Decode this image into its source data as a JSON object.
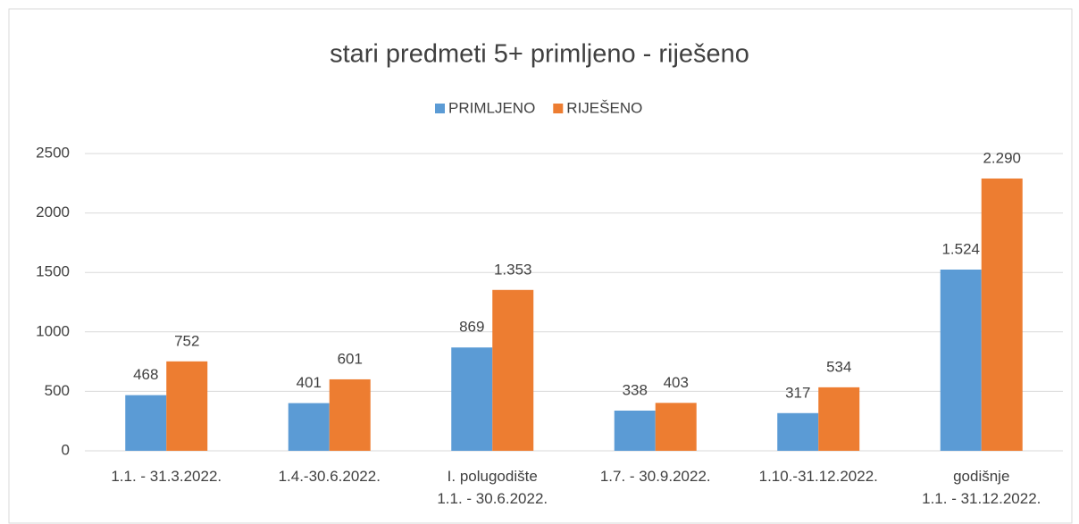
{
  "chart_data": {
    "type": "bar",
    "title": "stari predmeti 5+ primljeno - riješeno",
    "categories": [
      "1.1. - 31.3.2022.",
      "1.4.-30.6.2022.",
      "I. polugodište\n1.1. - 30.6.2022.",
      "1.7. - 30.9.2022.",
      "1.10.-31.12.2022.",
      "godišnje\n1.1. - 31.12.2022."
    ],
    "series": [
      {
        "name": "PRIMLJENO",
        "color": "#5b9bd5",
        "values": [
          468,
          401,
          869,
          338,
          317,
          1524
        ],
        "value_labels": [
          "468",
          "401",
          "869",
          "338",
          "317",
          "1.524"
        ]
      },
      {
        "name": "RIJEŠENO",
        "color": "#ed7d31",
        "values": [
          752,
          601,
          1353,
          403,
          534,
          2290
        ],
        "value_labels": [
          "752",
          "601",
          "1.353",
          "403",
          "534",
          "2.290"
        ]
      }
    ],
    "ylim": [
      0,
      2500
    ],
    "yticks": [
      0,
      500,
      1000,
      1500,
      2000,
      2500
    ],
    "grid": true,
    "legend": "top"
  }
}
